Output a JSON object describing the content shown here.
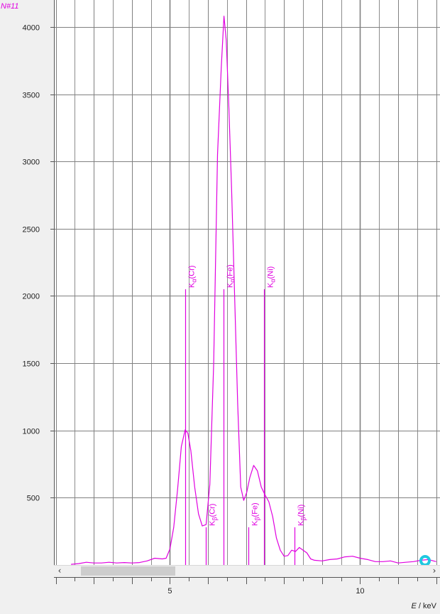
{
  "corner_label": "N#11",
  "colors": {
    "spectrum": "#e000e0",
    "grid": "#808080",
    "plot_background": "#ffffff",
    "marker": "#1fc8e0"
  },
  "chart_data": {
    "type": "line",
    "x_axis": {
      "label_italic": "E",
      "label_unit": " / keV",
      "ticks": [
        5,
        10
      ],
      "range": [
        1.95,
        12.1
      ]
    },
    "y_axis": {
      "ticks": [
        500,
        1000,
        1500,
        2000,
        2500,
        3000,
        3500,
        4000
      ],
      "range": [
        0,
        4200
      ]
    },
    "grid": true,
    "series": [
      {
        "x": [
          2.4,
          2.6,
          2.8,
          3.0,
          3.2,
          3.4,
          3.6,
          3.8,
          4.0,
          4.2,
          4.4,
          4.6,
          4.8,
          4.9,
          5.0,
          5.1,
          5.2,
          5.3,
          5.4,
          5.47,
          5.55,
          5.65,
          5.75,
          5.85,
          5.95,
          6.05,
          6.15,
          6.25,
          6.35,
          6.42,
          6.48,
          6.55,
          6.62,
          6.7,
          6.78,
          6.86,
          6.94,
          7.02,
          7.1,
          7.2,
          7.3,
          7.4,
          7.5,
          7.6,
          7.7,
          7.8,
          7.9,
          8.0,
          8.1,
          8.2,
          8.3,
          8.4,
          8.5,
          8.6,
          8.7,
          8.8,
          9.0,
          9.2,
          9.4,
          9.6,
          9.8,
          10.0,
          10.2,
          10.4,
          10.6,
          10.8,
          11.0,
          11.2,
          11.4,
          11.6,
          11.8,
          12.0
        ],
        "y": [
          5,
          10,
          20,
          15,
          15,
          20,
          15,
          18,
          15,
          18,
          30,
          50,
          45,
          50,
          120,
          280,
          560,
          880,
          1005,
          980,
          850,
          580,
          380,
          290,
          300,
          600,
          1500,
          3050,
          3700,
          4080,
          3900,
          3400,
          2800,
          2000,
          1200,
          580,
          480,
          540,
          650,
          740,
          700,
          580,
          520,
          470,
          360,
          200,
          110,
          65,
          70,
          110,
          100,
          130,
          110,
          90,
          45,
          35,
          30,
          40,
          45,
          60,
          65,
          50,
          40,
          25,
          25,
          30,
          15,
          20,
          25,
          35,
          40,
          25
        ]
      }
    ],
    "lines": [
      {
        "label": "Kα(Cr)",
        "base": "K",
        "sub": "α",
        "el": "(Cr)",
        "x": 5.41,
        "height": 2050
      },
      {
        "label": "Kα(Fe)",
        "base": "K",
        "sub": "α",
        "el": "(Fe)",
        "x": 6.4,
        "height": 2050
      },
      {
        "label": "Kα(Ni)",
        "base": "K",
        "sub": "α",
        "el": "(Ni)",
        "x": 7.48,
        "height": 2050
      },
      {
        "label": "Kβ(Cr)",
        "base": "K",
        "sub": "β",
        "el": "(Cr)",
        "x": 5.95,
        "height": 280
      },
      {
        "label": "Kβ(Fe)",
        "base": "K",
        "sub": "β",
        "el": "(Fe)",
        "x": 7.06,
        "height": 280
      },
      {
        "label": "Kβ(Ni)",
        "base": "K",
        "sub": "β",
        "el": "(Ni)",
        "x": 8.27,
        "height": 280
      }
    ]
  },
  "scrollbar": {
    "left_arrow": "‹",
    "right_arrow": "›"
  }
}
